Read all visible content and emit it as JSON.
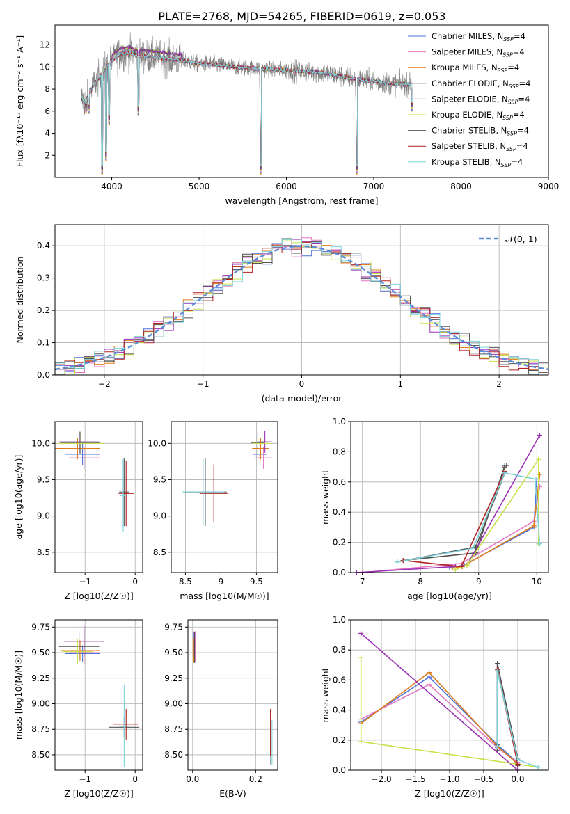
{
  "title": "PLATE=2768, MJD=54265, FIBERID=0619, z=0.053",
  "colors": {
    "chabrier_miles": "#4c72d8",
    "salpeter_miles": "#e377c2",
    "kroupa_miles": "#e07b1a",
    "chabrier_elodie": "#4e4e4e",
    "salpeter_elodie": "#9b30b5",
    "kroupa_elodie": "#c8e04a",
    "chabrier_stelib": "#555555",
    "salpeter_stelib": "#b22222",
    "kroupa_stelib": "#7fd4dc",
    "data": "#808080"
  },
  "legend": {
    "entries": [
      {
        "label": "Chabrier MILES, N",
        "sub": "SSP",
        "tail": "=4",
        "color": "#4c72d8"
      },
      {
        "label": "Salpeter MILES, N",
        "sub": "SSP",
        "tail": "=4",
        "color": "#e377c2"
      },
      {
        "label": "Kroupa MILES, N",
        "sub": "SSP",
        "tail": "=4",
        "color": "#e07b1a"
      },
      {
        "label": "Chabrier ELODIE, N",
        "sub": "SSP",
        "tail": "=4",
        "color": "#4e4e4e"
      },
      {
        "label": "Salpeter ELODIE, N",
        "sub": "SSP",
        "tail": "=4",
        "color": "#9b30b5"
      },
      {
        "label": "Kroupa ELODIE, N",
        "sub": "SSP",
        "tail": "=4",
        "color": "#c8e04a"
      },
      {
        "label": "Chabrier STELIB, N",
        "sub": "SSP",
        "tail": "=4",
        "color": "#555555"
      },
      {
        "label": "Salpeter STELIB, N",
        "sub": "SSP",
        "tail": "=4",
        "color": "#b22222"
      },
      {
        "label": "Kroupa STELIB, N",
        "sub": "SSP",
        "tail": "=4",
        "color": "#7fd4dc"
      }
    ],
    "gauss_label": "𝒩(0, 1)"
  },
  "chart_data": [
    {
      "id": "spectrum",
      "type": "line",
      "xlabel": "wavelength [Angstrom, rest frame]",
      "ylabel": "Flux [fλ10⁻¹⁷ erg cm⁻² s⁻¹ A⁻¹]",
      "xlim": [
        3350,
        9000
      ],
      "ylim": [
        0,
        13.8
      ],
      "xticks": [
        4000,
        5000,
        6000,
        7000,
        8000,
        9000
      ],
      "yticks": [
        2,
        4,
        6,
        8,
        10,
        12
      ],
      "continuum": [
        [
          3650,
          7.2
        ],
        [
          3700,
          6.8
        ],
        [
          3800,
          8.5
        ],
        [
          3900,
          9.5
        ],
        [
          4000,
          10.6
        ],
        [
          4100,
          11.2
        ],
        [
          4200,
          11.3
        ],
        [
          4300,
          11.0
        ],
        [
          4400,
          11.0
        ],
        [
          4500,
          10.9
        ],
        [
          4600,
          10.8
        ],
        [
          4800,
          10.6
        ],
        [
          5000,
          10.3
        ],
        [
          5200,
          10.2
        ],
        [
          5400,
          10.0
        ],
        [
          5600,
          9.9
        ],
        [
          5800,
          9.8
        ],
        [
          6000,
          9.7
        ],
        [
          6200,
          9.6
        ],
        [
          6400,
          9.5
        ],
        [
          6600,
          9.2
        ],
        [
          6800,
          8.9
        ],
        [
          7000,
          8.7
        ],
        [
          7200,
          8.5
        ],
        [
          7450,
          8.4
        ]
      ],
      "absorption_lines": [
        [
          3705,
          5.9
        ],
        [
          3735,
          5.8
        ],
        [
          3890,
          0.3
        ],
        [
          3935,
          1.5
        ],
        [
          3970,
          4.8
        ],
        [
          4305,
          5.6
        ],
        [
          5705,
          0.3
        ],
        [
          6805,
          0.3
        ],
        [
          7440,
          6.0
        ]
      ]
    },
    {
      "id": "residuals",
      "type": "bar",
      "xlabel": "(data-model)/error",
      "ylabel": "Normed distribution",
      "xlim": [
        -2.5,
        2.5
      ],
      "ylim": [
        0,
        0.465
      ],
      "xticks": [
        -2,
        -1,
        0,
        1,
        2
      ],
      "yticks": [
        0.0,
        0.1,
        0.2,
        0.3,
        0.4
      ],
      "bin_edges": [
        -2.5,
        2.5
      ],
      "nbins": 50,
      "curve": "normal(0,1)"
    },
    {
      "id": "age_vs_Z",
      "type": "scatter",
      "xlabel": "Z [log10(Z/Z☉)]",
      "ylabel": "age  [log10(age/yr)]",
      "xlim": [
        -1.6,
        0.15
      ],
      "ylim": [
        8.22,
        10.3
      ],
      "xticks": [
        -1,
        0
      ],
      "yticks": [
        8.5,
        9.0,
        9.5,
        10.0
      ],
      "points": [
        {
          "x": -1.05,
          "y": 9.85,
          "xerr": 0.35,
          "yerr": 0.15,
          "color": "#4c72d8"
        },
        {
          "x": -1.02,
          "y": 9.8,
          "xerr": 0.3,
          "yerr": 0.15,
          "color": "#e377c2"
        },
        {
          "x": -1.15,
          "y": 9.93,
          "xerr": 0.45,
          "yerr": 0.15,
          "color": "#e07b1a"
        },
        {
          "x": -1.1,
          "y": 10.01,
          "xerr": 0.4,
          "yerr": 0.15,
          "color": "#4e4e4e"
        },
        {
          "x": -1.12,
          "y": 10.02,
          "xerr": 0.4,
          "yerr": 0.15,
          "color": "#9b30b5"
        },
        {
          "x": -1.08,
          "y": 10.0,
          "xerr": 0.45,
          "yerr": 0.17,
          "color": "#c8e04a"
        },
        {
          "x": -0.22,
          "y": 9.33,
          "xerr": 0.1,
          "yerr": 0.47,
          "color": "#555555"
        },
        {
          "x": -0.18,
          "y": 9.31,
          "xerr": 0.15,
          "yerr": 0.45,
          "color": "#b22222"
        },
        {
          "x": -0.24,
          "y": 9.28,
          "xerr": 0.06,
          "yerr": 0.5,
          "color": "#7fd4dc"
        }
      ]
    },
    {
      "id": "age_vs_mass",
      "type": "scatter",
      "xlabel": "mass [log10(M/M☉)]",
      "ylabel": "",
      "xlim": [
        8.3,
        9.8
      ],
      "ylim": [
        8.22,
        10.3
      ],
      "xticks": [
        8.5,
        9.0,
        9.5
      ],
      "yticks": [
        8.5,
        9.0,
        9.5,
        10.0
      ],
      "points": [
        {
          "x": 9.55,
          "y": 9.85,
          "xerr": 0.1,
          "yerr": 0.15,
          "color": "#4c72d8"
        },
        {
          "x": 9.6,
          "y": 9.8,
          "xerr": 0.12,
          "yerr": 0.15,
          "color": "#e377c2"
        },
        {
          "x": 9.56,
          "y": 9.93,
          "xerr": 0.12,
          "yerr": 0.15,
          "color": "#e07b1a"
        },
        {
          "x": 9.52,
          "y": 10.01,
          "xerr": 0.1,
          "yerr": 0.15,
          "color": "#4e4e4e"
        },
        {
          "x": 9.62,
          "y": 10.02,
          "xerr": 0.1,
          "yerr": 0.15,
          "color": "#9b30b5"
        },
        {
          "x": 9.58,
          "y": 10.0,
          "xerr": 0.12,
          "yerr": 0.17,
          "color": "#c8e04a"
        },
        {
          "x": 8.78,
          "y": 9.33,
          "xerr": 0.3,
          "yerr": 0.47,
          "color": "#555555"
        },
        {
          "x": 8.9,
          "y": 9.31,
          "xerr": 0.2,
          "yerr": 0.4,
          "color": "#b22222"
        },
        {
          "x": 8.75,
          "y": 9.33,
          "xerr": 0.3,
          "yerr": 0.45,
          "color": "#7fd4dc"
        }
      ]
    },
    {
      "id": "mass_weight_vs_age",
      "type": "line",
      "xlabel": "age  [log10(age/yr)]",
      "ylabel": "mass weight",
      "xlim": [
        6.8,
        10.2
      ],
      "ylim": [
        0,
        1.0
      ],
      "xticks": [
        7,
        8,
        9,
        10
      ],
      "yticks": [
        0.0,
        0.2,
        0.4,
        0.6,
        0.8,
        1.0
      ],
      "series": [
        {
          "color": "#4c72d8",
          "x": [
            8.5,
            8.75,
            9.95,
            10.0
          ],
          "y": [
            0.03,
            0.05,
            0.3,
            0.62
          ]
        },
        {
          "color": "#e377c2",
          "x": [
            7.0,
            8.7,
            9.95,
            10.05
          ],
          "y": [
            0.0,
            0.06,
            0.34,
            0.57
          ]
        },
        {
          "color": "#e07b1a",
          "x": [
            8.55,
            8.72,
            9.95,
            10.05
          ],
          "y": [
            0.03,
            0.04,
            0.31,
            0.65
          ]
        },
        {
          "color": "#4e4e4e",
          "x": [
            7.7,
            8.95,
            9.45,
            9.48
          ],
          "y": [
            0.08,
            0.13,
            0.71,
            0.71
          ]
        },
        {
          "color": "#9b30b5",
          "x": [
            6.9,
            8.6,
            8.8,
            10.05
          ],
          "y": [
            0.0,
            0.04,
            0.05,
            0.91
          ]
        },
        {
          "color": "#c8e04a",
          "x": [
            8.6,
            8.8,
            10.03,
            10.03
          ],
          "y": [
            0.02,
            0.05,
            0.75,
            0.19
          ]
        },
        {
          "color": "#555555",
          "x": [
            7.6,
            8.95,
            9.45,
            9.45
          ],
          "y": [
            0.07,
            0.17,
            0.66,
            0.7
          ]
        },
        {
          "color": "#b22222",
          "x": [
            7.7,
            8.7,
            9.45
          ],
          "y": [
            0.08,
            0.04,
            0.67
          ]
        },
        {
          "color": "#7fd4dc",
          "x": [
            7.6,
            8.9,
            9.45,
            9.97,
            10.05
          ],
          "y": [
            0.07,
            0.16,
            0.66,
            0.62,
            0.19
          ]
        }
      ]
    },
    {
      "id": "mass_vs_Z",
      "type": "scatter",
      "xlabel": "Z [log10(Z/Z☉)]",
      "ylabel": "mass [log10(M/M☉)]",
      "xlim": [
        -1.6,
        0.15
      ],
      "ylim": [
        8.35,
        9.82
      ],
      "xticks": [
        -1,
        0
      ],
      "yticks": [
        8.5,
        8.75,
        9.0,
        9.25,
        9.5,
        9.75
      ],
      "points": [
        {
          "x": -1.05,
          "y": 9.49,
          "xerr": 0.35,
          "yerr": 0.08,
          "color": "#4c72d8"
        },
        {
          "x": -1.02,
          "y": 9.5,
          "xerr": 0.3,
          "yerr": 0.12,
          "color": "#e377c2"
        },
        {
          "x": -1.1,
          "y": 9.52,
          "xerr": 0.4,
          "yerr": 0.1,
          "color": "#e07b1a"
        },
        {
          "x": -1.12,
          "y": 9.56,
          "xerr": 0.4,
          "yerr": 0.15,
          "color": "#4e4e4e"
        },
        {
          "x": -1.02,
          "y": 9.61,
          "xerr": 0.4,
          "yerr": 0.15,
          "color": "#9b30b5"
        },
        {
          "x": -1.15,
          "y": 9.51,
          "xerr": 0.3,
          "yerr": 0.12,
          "color": "#c8e04a"
        },
        {
          "x": -0.22,
          "y": 8.77,
          "xerr": 0.3,
          "yerr": 0.1,
          "color": "#555555"
        },
        {
          "x": -0.18,
          "y": 8.8,
          "xerr": 0.25,
          "yerr": 0.15,
          "color": "#b22222"
        },
        {
          "x": -0.22,
          "y": 8.78,
          "xerr": 0.1,
          "yerr": 0.4,
          "color": "#7fd4dc"
        }
      ]
    },
    {
      "id": "mass_vs_ebv",
      "type": "scatter",
      "xlabel": "E(B-V)",
      "ylabel": "",
      "xlim": [
        -0.015,
        0.27
      ],
      "ylim": [
        8.35,
        9.82
      ],
      "xticks": [
        0.0,
        0.2
      ],
      "yticks": [
        8.5,
        8.75,
        9.0,
        9.25,
        9.5,
        9.75
      ],
      "points": [
        {
          "x": 0.005,
          "y": 9.55,
          "yerr": 0.15,
          "color": "#4c72d8"
        },
        {
          "x": 0.008,
          "y": 9.56,
          "yerr": 0.15,
          "color": "#e377c2"
        },
        {
          "x": 0.004,
          "y": 9.52,
          "yerr": 0.12,
          "color": "#e07b1a"
        },
        {
          "x": 0.006,
          "y": 9.55,
          "yerr": 0.15,
          "color": "#4e4e4e"
        },
        {
          "x": 0.002,
          "y": 9.59,
          "yerr": 0.12,
          "color": "#9b30b5"
        },
        {
          "x": 0.001,
          "y": 9.52,
          "yerr": 0.12,
          "color": "#c8e04a"
        },
        {
          "x": 0.248,
          "y": 8.58,
          "yerr": 0.18,
          "color": "#555555"
        },
        {
          "x": 0.247,
          "y": 8.72,
          "yerr": 0.23,
          "color": "#b22222"
        },
        {
          "x": 0.252,
          "y": 8.62,
          "yerr": 0.22,
          "color": "#7fd4dc"
        }
      ]
    },
    {
      "id": "mass_weight_vs_Z",
      "type": "line",
      "xlabel": "Z [log10(Z/Z☉)]",
      "ylabel": "mass weight",
      "xlim": [
        -2.45,
        0.45
      ],
      "ylim": [
        0,
        1.0
      ],
      "xticks": [
        -2.0,
        -1.5,
        -1.0,
        -0.5,
        0.0
      ],
      "yticks": [
        0.0,
        0.2,
        0.4,
        0.6,
        0.8,
        1.0
      ],
      "series": [
        {
          "color": "#4c72d8",
          "x": [
            -2.3,
            -1.3,
            -0.3,
            0.0
          ],
          "y": [
            0.32,
            0.62,
            0.17,
            0.05
          ]
        },
        {
          "color": "#e377c2",
          "x": [
            -2.3,
            -1.3,
            -0.3,
            0.0
          ],
          "y": [
            0.34,
            0.57,
            0.15,
            0.05
          ]
        },
        {
          "color": "#e07b1a",
          "x": [
            -2.3,
            -1.3,
            -0.3,
            0.0
          ],
          "y": [
            0.31,
            0.65,
            0.16,
            0.04
          ]
        },
        {
          "color": "#4e4e4e",
          "x": [
            -0.3,
            -0.3,
            0.0,
            0.0
          ],
          "y": [
            0.13,
            0.71,
            0.08,
            0.03
          ]
        },
        {
          "color": "#9b30b5",
          "x": [
            -2.3,
            0.0,
            0.0
          ],
          "y": [
            0.91,
            0.0,
            0.05
          ]
        },
        {
          "color": "#c8e04a",
          "x": [
            -2.3,
            -2.3,
            0.3
          ],
          "y": [
            0.75,
            0.19,
            0.02
          ]
        },
        {
          "color": "#555555",
          "x": [
            -0.3,
            -0.3,
            0.0
          ],
          "y": [
            0.17,
            0.66,
            0.07
          ]
        },
        {
          "color": "#b22222",
          "x": [
            -0.3,
            0.0
          ],
          "y": [
            0.67,
            0.04
          ]
        },
        {
          "color": "#7fd4dc",
          "x": [
            -0.3,
            -0.3,
            0.0,
            0.3
          ],
          "y": [
            0.16,
            0.66,
            0.07,
            0.02
          ]
        }
      ]
    }
  ]
}
